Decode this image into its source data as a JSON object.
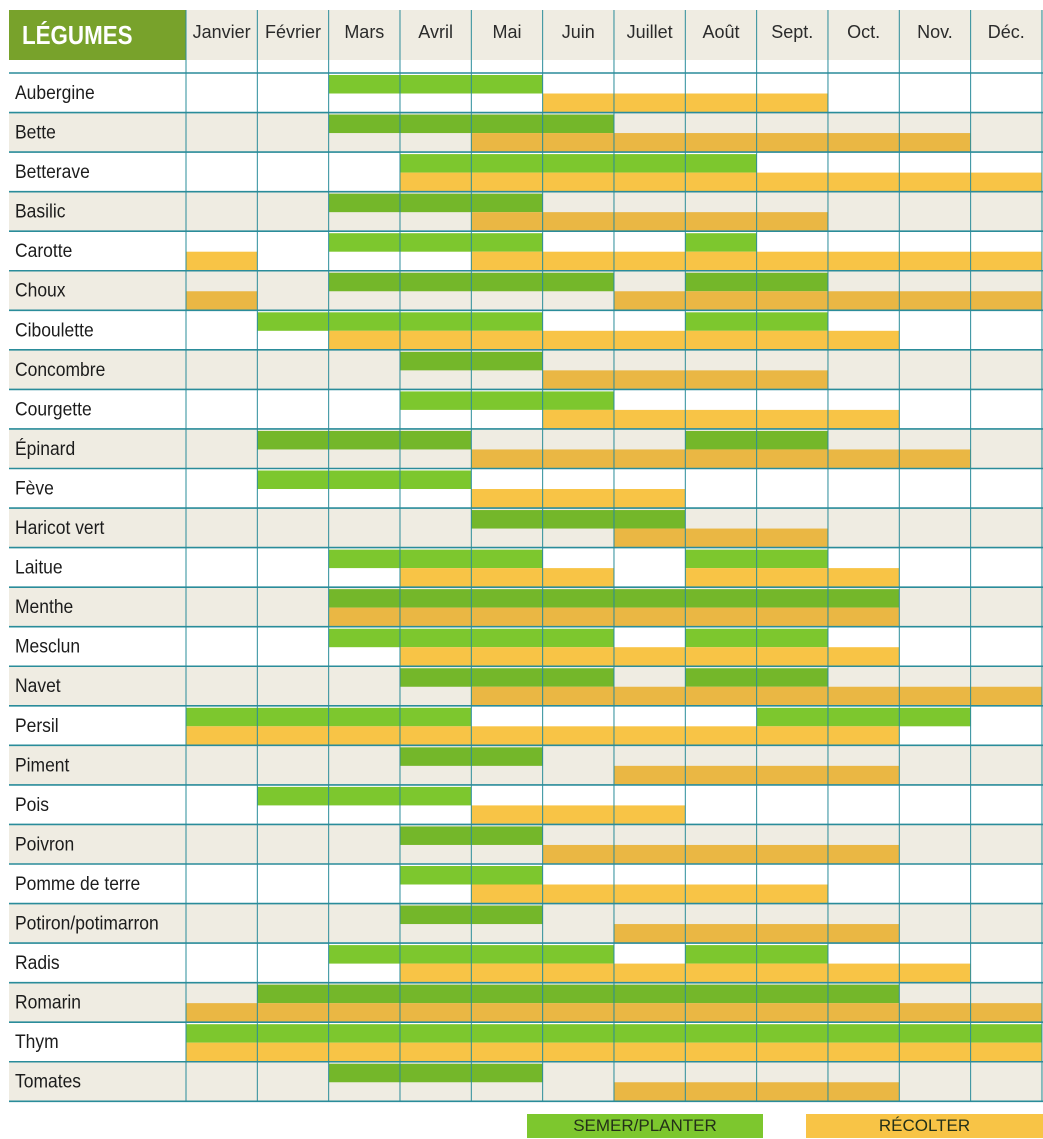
{
  "chart_data": {
    "type": "table",
    "title": "LÉGUMES",
    "months": [
      "Janvier",
      "Février",
      "Mars",
      "Avril",
      "Mai",
      "Juin",
      "Juillet",
      "Août",
      "Sept.",
      "Oct.",
      "Nov.",
      "Déc."
    ],
    "legend": [
      {
        "key": "sow",
        "label": "SEMER/PLANTER",
        "color": "#7dc72e"
      },
      {
        "key": "harvest",
        "label": "RÉCOLTER",
        "color": "#f8c446"
      }
    ],
    "rows": [
      {
        "name": "Aubergine",
        "sow": [
          3,
          4,
          5
        ],
        "harvest": [
          6,
          7,
          8,
          9
        ]
      },
      {
        "name": "Bette",
        "sow": [
          3,
          4,
          5,
          6
        ],
        "harvest": [
          5,
          6,
          7,
          8,
          9,
          10,
          11
        ]
      },
      {
        "name": "Betterave",
        "sow": [
          4,
          5,
          6,
          7,
          8
        ],
        "harvest": [
          4,
          5,
          6,
          7,
          8,
          9,
          10,
          11,
          12
        ]
      },
      {
        "name": "Basilic",
        "sow": [
          3,
          4,
          5
        ],
        "harvest": [
          5,
          6,
          7,
          8,
          9
        ]
      },
      {
        "name": "Carotte",
        "sow": [
          3,
          4,
          5,
          8
        ],
        "harvest": [
          1,
          5,
          6,
          7,
          8,
          9,
          10,
          11,
          12
        ]
      },
      {
        "name": "Choux",
        "sow": [
          3,
          4,
          5,
          6,
          8,
          9
        ],
        "harvest": [
          1,
          7,
          8,
          9,
          10,
          11,
          12
        ]
      },
      {
        "name": "Ciboulette",
        "sow": [
          2,
          3,
          4,
          5,
          8,
          9
        ],
        "harvest": [
          3,
          4,
          5,
          6,
          7,
          8,
          9,
          10
        ]
      },
      {
        "name": "Concombre",
        "sow": [
          4,
          5
        ],
        "harvest": [
          6,
          7,
          8,
          9
        ]
      },
      {
        "name": "Courgette",
        "sow": [
          4,
          5,
          6
        ],
        "harvest": [
          6,
          7,
          8,
          9,
          10
        ]
      },
      {
        "name": "Épinard",
        "sow": [
          2,
          3,
          4,
          8,
          9
        ],
        "harvest": [
          5,
          6,
          7,
          8,
          9,
          10,
          11
        ]
      },
      {
        "name": "Fève",
        "sow": [
          2,
          3,
          4
        ],
        "harvest": [
          5,
          6,
          7
        ]
      },
      {
        "name": "Haricot vert",
        "sow": [
          5,
          6,
          7
        ],
        "harvest": [
          7,
          8,
          9
        ]
      },
      {
        "name": "Laitue",
        "sow": [
          3,
          4,
          5,
          8,
          9
        ],
        "harvest": [
          4,
          5,
          6,
          8,
          9,
          10
        ]
      },
      {
        "name": "Menthe",
        "sow": [
          3,
          4,
          5,
          6,
          7,
          8,
          9,
          10
        ],
        "harvest": [
          3,
          4,
          5,
          6,
          7,
          8,
          9,
          10
        ]
      },
      {
        "name": "Mesclun",
        "sow": [
          3,
          4,
          5,
          6,
          8,
          9
        ],
        "harvest": [
          4,
          5,
          6,
          7,
          8,
          9,
          10
        ]
      },
      {
        "name": "Navet",
        "sow": [
          4,
          5,
          6,
          8,
          9
        ],
        "harvest": [
          5,
          6,
          7,
          8,
          9,
          10,
          11,
          12
        ]
      },
      {
        "name": "Persil",
        "sow": [
          1,
          2,
          3,
          4,
          9,
          10,
          11
        ],
        "harvest": [
          1,
          2,
          3,
          4,
          5,
          6,
          7,
          8,
          9,
          10
        ]
      },
      {
        "name": "Piment",
        "sow": [
          4,
          5
        ],
        "harvest": [
          7,
          8,
          9,
          10
        ]
      },
      {
        "name": "Pois",
        "sow": [
          2,
          3,
          4
        ],
        "harvest": [
          5,
          6,
          7
        ]
      },
      {
        "name": "Poivron",
        "sow": [
          4,
          5
        ],
        "harvest": [
          6,
          7,
          8,
          9,
          10
        ]
      },
      {
        "name": "Pomme de terre",
        "sow": [
          4,
          5
        ],
        "harvest": [
          5,
          6,
          7,
          8,
          9
        ]
      },
      {
        "name": "Potiron/potimarron",
        "sow": [
          4,
          5
        ],
        "harvest": [
          7,
          8,
          9,
          10
        ]
      },
      {
        "name": "Radis",
        "sow": [
          3,
          4,
          5,
          6,
          8,
          9
        ],
        "harvest": [
          4,
          5,
          6,
          7,
          8,
          9,
          10,
          11
        ]
      },
      {
        "name": "Romarin",
        "sow": [
          2,
          3,
          4,
          5,
          6,
          7,
          8,
          9,
          10
        ],
        "harvest": [
          1,
          2,
          3,
          4,
          5,
          6,
          7,
          8,
          9,
          10,
          11,
          12
        ]
      },
      {
        "name": "Thym",
        "sow": [
          1,
          2,
          3,
          4,
          5,
          6,
          7,
          8,
          9,
          10,
          11,
          12
        ],
        "harvest": [
          1,
          2,
          3,
          4,
          5,
          6,
          7,
          8,
          9,
          10,
          11,
          12
        ]
      },
      {
        "name": "Tomates",
        "sow": [
          3,
          4,
          5
        ],
        "harvest": [
          7,
          8,
          9,
          10
        ]
      }
    ]
  },
  "colors": {
    "title_bg": "#78a22b",
    "header_bg": "#efece2",
    "row_alt_bg": "#efece2",
    "row_bg": "#ffffff",
    "grid_line": "#2a8c9a",
    "sow": "#7dc72e",
    "sow_alt": "#74b72a",
    "harvest": "#f8c446",
    "harvest_alt": "#eab744"
  }
}
